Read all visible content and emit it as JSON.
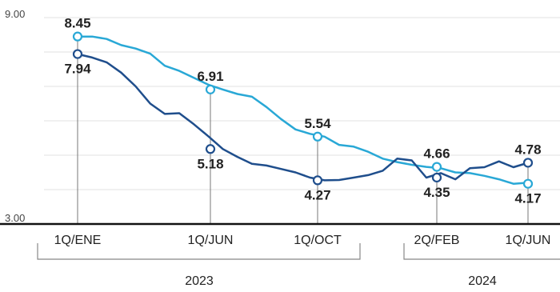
{
  "chart_data": {
    "type": "line",
    "title": "",
    "xlabel": "",
    "ylabel": "",
    "ylim": [
      3.0,
      9.0
    ],
    "y_tick_labels": [
      "9.00",
      "3.00"
    ],
    "grid": true,
    "colors": {
      "series_light": "#29A8D6",
      "series_dark": "#1F4E8C",
      "axis": "#111111",
      "grid": "#e2e2e2",
      "bracket": "#888888"
    },
    "x_tick_labels": [
      "1Q/ENE",
      "1Q/JUN",
      "1Q/OCT",
      "2Q/FEB",
      "1Q/JUN"
    ],
    "year_labels": [
      "2023",
      "2024"
    ],
    "series": [
      {
        "values": [
          8.45,
          8.45,
          8.38,
          8.2,
          8.1,
          7.95,
          7.6,
          7.45,
          7.25,
          7.05,
          6.91,
          6.78,
          6.7,
          6.4,
          6.05,
          5.75,
          5.62,
          5.54,
          5.3,
          5.25,
          5.1,
          4.9,
          4.8,
          4.72,
          4.66,
          4.62,
          4.5,
          4.48,
          4.4,
          4.3,
          4.17,
          4.2
        ],
        "labeled": [
          {
            "index": 0,
            "value": "8.45",
            "tick": 0
          },
          {
            "index": 10,
            "value": "6.91",
            "tick": 1
          },
          {
            "index": 17,
            "value": "5.54",
            "tick": 2
          },
          {
            "index": 24,
            "value": "4.66",
            "tick": 3
          },
          {
            "index": 30,
            "value": "4.17",
            "tick": 4
          }
        ]
      },
      {
        "values": [
          7.94,
          7.84,
          7.7,
          7.4,
          7.0,
          6.5,
          6.2,
          6.22,
          5.9,
          5.55,
          5.18,
          4.95,
          4.75,
          4.7,
          4.6,
          4.5,
          4.35,
          4.27,
          4.28,
          4.35,
          4.42,
          4.55,
          4.9,
          4.85,
          4.35,
          4.48,
          4.3,
          4.62,
          4.65,
          4.82,
          4.65,
          4.78
        ],
        "labeled": [
          {
            "index": 0,
            "value": "7.94",
            "tick": 0
          },
          {
            "index": 10,
            "value": "5.18",
            "tick": 1
          },
          {
            "index": 17,
            "value": "4.27",
            "tick": 2
          },
          {
            "index": 24,
            "value": "4.35",
            "tick": 3
          },
          {
            "index": 31,
            "value": "4.78",
            "tick": 4
          }
        ]
      }
    ]
  }
}
